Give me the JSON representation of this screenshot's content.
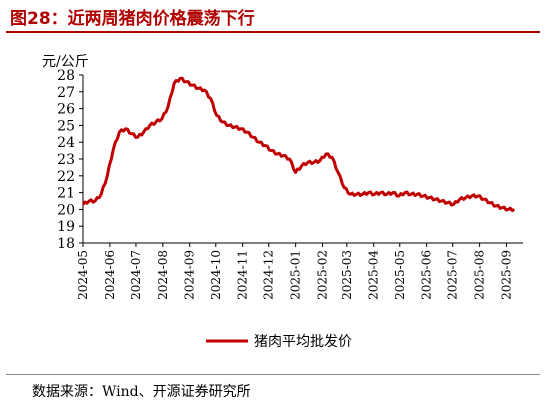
{
  "figure": {
    "title": "图28：近两周猪肉价格震荡下行",
    "source": "数据来源：Wind、开源证券研究所"
  },
  "colors": {
    "series": "#c00000",
    "title": "#b00000"
  },
  "chart_data": {
    "type": "line",
    "title": "",
    "ylabel": "元/公斤",
    "xlabel": "",
    "ylim": [
      18,
      28
    ],
    "yticks": [
      18,
      19,
      20,
      21,
      22,
      23,
      24,
      25,
      26,
      27,
      28
    ],
    "xticks": [
      "2024-05",
      "2024-06",
      "2024-07",
      "2024-08",
      "2024-09",
      "2024-10",
      "2024-11",
      "2024-12",
      "2025-01",
      "2025-02",
      "2025-03",
      "2025-04",
      "2025-05",
      "2025-06",
      "2025-07",
      "2025-08",
      "2025-09"
    ],
    "legend": {
      "placement": "bottom"
    },
    "grid": false,
    "series": [
      {
        "name": "猪肉平均批发价",
        "x": [
          "2024-05-01",
          "2024-05-08",
          "2024-05-15",
          "2024-05-22",
          "2024-05-29",
          "2024-06-05",
          "2024-06-12",
          "2024-06-19",
          "2024-06-26",
          "2024-07-03",
          "2024-07-10",
          "2024-07-17",
          "2024-07-24",
          "2024-07-31",
          "2024-08-07",
          "2024-08-14",
          "2024-08-21",
          "2024-08-28",
          "2024-09-04",
          "2024-09-11",
          "2024-09-18",
          "2024-09-25",
          "2024-10-02",
          "2024-10-09",
          "2024-10-16",
          "2024-10-23",
          "2024-10-30",
          "2024-11-06",
          "2024-11-13",
          "2024-11-20",
          "2024-11-27",
          "2024-12-04",
          "2024-12-11",
          "2024-12-18",
          "2024-12-25",
          "2025-01-01",
          "2025-01-08",
          "2025-01-15",
          "2025-01-22",
          "2025-01-29",
          "2025-02-05",
          "2025-02-12",
          "2025-02-19",
          "2025-02-26",
          "2025-03-05",
          "2025-03-12",
          "2025-03-19",
          "2025-03-26",
          "2025-04-02",
          "2025-04-09",
          "2025-04-16",
          "2025-04-23",
          "2025-04-30",
          "2025-05-07",
          "2025-05-14",
          "2025-05-21",
          "2025-05-28",
          "2025-06-04",
          "2025-06-11",
          "2025-06-18",
          "2025-06-25",
          "2025-07-02",
          "2025-07-09",
          "2025-07-16",
          "2025-07-23",
          "2025-07-30",
          "2025-08-06",
          "2025-08-13",
          "2025-08-20",
          "2025-08-27",
          "2025-09-03",
          "2025-09-10"
        ],
        "values": [
          20.3,
          20.5,
          20.5,
          20.9,
          22.0,
          23.6,
          24.6,
          24.8,
          24.5,
          24.3,
          24.6,
          25.0,
          25.2,
          25.4,
          26.1,
          27.5,
          27.8,
          27.6,
          27.4,
          27.2,
          27.1,
          26.6,
          25.6,
          25.2,
          25.0,
          24.9,
          24.8,
          24.6,
          24.3,
          24.0,
          23.8,
          23.5,
          23.3,
          23.2,
          23.0,
          22.2,
          22.6,
          22.8,
          22.8,
          22.9,
          23.3,
          23.1,
          22.2,
          21.3,
          20.9,
          20.9,
          20.9,
          21.0,
          20.9,
          21.0,
          20.9,
          21.0,
          20.8,
          21.0,
          20.9,
          20.9,
          20.8,
          20.7,
          20.6,
          20.5,
          20.4,
          20.3,
          20.6,
          20.7,
          20.8,
          20.8,
          20.6,
          20.4,
          20.2,
          20.1,
          20.0,
          20.0
        ]
      }
    ]
  }
}
